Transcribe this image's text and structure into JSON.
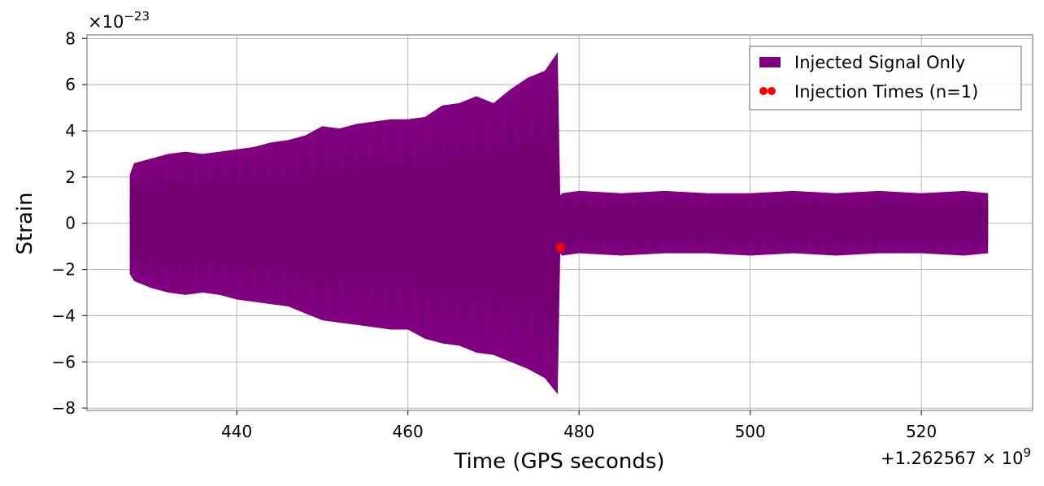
{
  "chart_data": {
    "type": "line",
    "title": "",
    "xlabel": "Time (GPS seconds)",
    "ylabel": "Strain",
    "x_offset_label": "+1.262567",
    "x_offset_exponent": "9",
    "y_scale_label": "×10",
    "y_scale_exponent": "−23",
    "xlim": [
      422.5,
      533.0
    ],
    "ylim": [
      -8.1,
      8.15
    ],
    "x_ticks": [
      440,
      460,
      480,
      500,
      520
    ],
    "x_tick_labels": [
      "440",
      "460",
      "480",
      "500",
      "520"
    ],
    "y_ticks": [
      -8,
      -6,
      -4,
      -2,
      0,
      2,
      4,
      6,
      8
    ],
    "y_tick_labels": [
      "−8",
      "−6",
      "−4",
      "−2",
      "0",
      "2",
      "4",
      "6",
      "8"
    ],
    "grid": true,
    "legend_position": "top-right",
    "series": [
      {
        "name": "Injected Signal Only",
        "kind": "filled-envelope",
        "color": "#800080",
        "x": [
          427.5,
          428,
          430,
          432,
          434,
          436,
          438,
          440,
          442,
          444,
          446,
          448,
          450,
          452,
          454,
          456,
          458,
          460,
          462,
          464,
          466,
          468,
          470,
          472,
          474,
          476,
          477.5,
          477.8,
          478,
          480,
          485,
          490,
          495,
          500,
          505,
          510,
          515,
          520,
          525,
          527.8
        ],
        "upper": [
          2.1,
          2.6,
          2.8,
          3.0,
          3.1,
          3.0,
          3.1,
          3.2,
          3.3,
          3.5,
          3.6,
          3.8,
          4.2,
          4.1,
          4.3,
          4.4,
          4.5,
          4.5,
          4.6,
          5.1,
          5.2,
          5.5,
          5.2,
          5.8,
          6.3,
          6.6,
          7.4,
          1.2,
          1.3,
          1.4,
          1.3,
          1.4,
          1.3,
          1.3,
          1.4,
          1.3,
          1.4,
          1.3,
          1.4,
          1.3
        ],
        "lower": [
          -2.2,
          -2.5,
          -2.8,
          -3.0,
          -3.1,
          -3.0,
          -3.1,
          -3.3,
          -3.4,
          -3.5,
          -3.6,
          -3.9,
          -4.2,
          -4.3,
          -4.4,
          -4.5,
          -4.6,
          -4.6,
          -5.0,
          -5.2,
          -5.3,
          -5.6,
          -5.7,
          -6.0,
          -6.3,
          -6.7,
          -7.4,
          -1.3,
          -1.4,
          -1.3,
          -1.4,
          -1.3,
          -1.3,
          -1.4,
          -1.3,
          -1.4,
          -1.3,
          -1.3,
          -1.4,
          -1.3
        ]
      },
      {
        "name": "Injection Times (n=1)",
        "kind": "scatter",
        "color": "#ff0000",
        "x": [
          477.8
        ],
        "y": [
          -1.05
        ]
      }
    ]
  }
}
